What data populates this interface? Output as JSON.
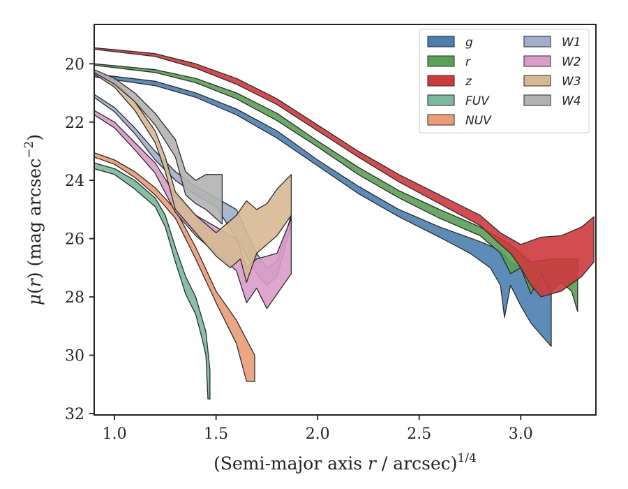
{
  "chart_data": {
    "type": "area",
    "title": "",
    "xlabel_parts": {
      "prefix": "(Semi-major axis ",
      "var": "r",
      "mid": " / arcsec)",
      "sup": "1/4"
    },
    "ylabel_parts": {
      "mu": "μ",
      "open": "(",
      "var": "r",
      "close": ") (mag arcsec",
      "sup": "−2",
      "end": ")"
    },
    "xlim": [
      0.9,
      3.37
    ],
    "ylim": [
      32.05,
      18.65
    ],
    "y_inverted": true,
    "xticks": [
      1.0,
      1.5,
      2.0,
      2.5,
      3.0
    ],
    "xtick_labels": [
      "1.0",
      "1.5",
      "2.0",
      "2.5",
      "3.0"
    ],
    "yticks": [
      20,
      22,
      24,
      26,
      28,
      30,
      32
    ],
    "ytick_labels": [
      "20",
      "22",
      "24",
      "26",
      "28",
      "30",
      "32"
    ],
    "grid": false,
    "legend_placement": "top-right",
    "legend_columns": 2,
    "series": [
      {
        "name": "g",
        "color": "#4c7fb0",
        "upper": [
          [
            0.9,
            20.35
          ],
          [
            1.2,
            20.6
          ],
          [
            1.4,
            21.0
          ],
          [
            1.6,
            21.55
          ],
          [
            1.8,
            22.3
          ],
          [
            2.0,
            23.3
          ],
          [
            2.2,
            24.2
          ],
          [
            2.4,
            25.0
          ],
          [
            2.6,
            25.6
          ],
          [
            2.8,
            26.1
          ],
          [
            2.9,
            26.4
          ],
          [
            2.95,
            26.8
          ],
          [
            3.0,
            27.0
          ],
          [
            3.05,
            27.1
          ],
          [
            3.1,
            26.95
          ],
          [
            3.15,
            27.0
          ]
        ],
        "lower": [
          [
            0.9,
            20.45
          ],
          [
            1.2,
            20.75
          ],
          [
            1.4,
            21.15
          ],
          [
            1.6,
            21.75
          ],
          [
            1.8,
            22.55
          ],
          [
            2.0,
            23.5
          ],
          [
            2.2,
            24.45
          ],
          [
            2.4,
            25.25
          ],
          [
            2.6,
            25.95
          ],
          [
            2.75,
            26.5
          ],
          [
            2.85,
            27.0
          ],
          [
            2.9,
            27.6
          ],
          [
            2.92,
            28.7
          ],
          [
            2.95,
            27.6
          ],
          [
            3.0,
            28.3
          ],
          [
            3.05,
            28.9
          ],
          [
            3.1,
            29.3
          ],
          [
            3.15,
            29.7
          ]
        ]
      },
      {
        "name": "r",
        "color": "#5aa055",
        "upper": [
          [
            0.9,
            20.0
          ],
          [
            1.2,
            20.2
          ],
          [
            1.4,
            20.5
          ],
          [
            1.6,
            21.0
          ],
          [
            1.8,
            21.7
          ],
          [
            2.0,
            22.65
          ],
          [
            2.2,
            23.55
          ],
          [
            2.4,
            24.35
          ],
          [
            2.6,
            25.0
          ],
          [
            2.8,
            25.6
          ],
          [
            2.95,
            26.2
          ],
          [
            3.05,
            26.8
          ],
          [
            3.15,
            26.7
          ],
          [
            3.25,
            26.7
          ],
          [
            3.28,
            26.7
          ]
        ],
        "lower": [
          [
            0.9,
            20.05
          ],
          [
            1.2,
            20.3
          ],
          [
            1.4,
            20.65
          ],
          [
            1.6,
            21.2
          ],
          [
            1.8,
            21.95
          ],
          [
            2.0,
            22.85
          ],
          [
            2.2,
            23.8
          ],
          [
            2.4,
            24.6
          ],
          [
            2.6,
            25.3
          ],
          [
            2.8,
            25.9
          ],
          [
            2.9,
            26.5
          ],
          [
            2.95,
            27.2
          ],
          [
            3.0,
            27.0
          ],
          [
            3.05,
            27.9
          ],
          [
            3.1,
            27.2
          ],
          [
            3.15,
            27.8
          ],
          [
            3.2,
            27.5
          ],
          [
            3.25,
            27.8
          ],
          [
            3.28,
            28.5
          ]
        ]
      },
      {
        "name": "z",
        "color": "#cc3a3e",
        "upper": [
          [
            0.9,
            19.45
          ],
          [
            1.2,
            19.65
          ],
          [
            1.4,
            20.0
          ],
          [
            1.6,
            20.5
          ],
          [
            1.8,
            21.2
          ],
          [
            2.0,
            22.1
          ],
          [
            2.2,
            23.0
          ],
          [
            2.4,
            23.8
          ],
          [
            2.6,
            24.5
          ],
          [
            2.8,
            25.2
          ],
          [
            2.9,
            25.8
          ],
          [
            3.0,
            26.2
          ],
          [
            3.1,
            25.95
          ],
          [
            3.2,
            25.9
          ],
          [
            3.3,
            25.6
          ],
          [
            3.36,
            25.25
          ]
        ],
        "lower": [
          [
            0.9,
            19.5
          ],
          [
            1.2,
            19.75
          ],
          [
            1.4,
            20.15
          ],
          [
            1.6,
            20.7
          ],
          [
            1.8,
            21.4
          ],
          [
            2.0,
            22.3
          ],
          [
            2.2,
            23.2
          ],
          [
            2.4,
            24.05
          ],
          [
            2.6,
            24.8
          ],
          [
            2.8,
            25.55
          ],
          [
            2.9,
            26.2
          ],
          [
            2.95,
            26.5
          ],
          [
            3.0,
            27.0
          ],
          [
            3.05,
            27.6
          ],
          [
            3.1,
            28.0
          ],
          [
            3.2,
            27.8
          ],
          [
            3.3,
            27.3
          ],
          [
            3.36,
            26.8
          ]
        ]
      },
      {
        "name": "FUV",
        "color": "#7bb89c",
        "upper": [
          [
            0.9,
            23.4
          ],
          [
            1.0,
            23.6
          ],
          [
            1.1,
            24.0
          ],
          [
            1.2,
            24.6
          ],
          [
            1.25,
            25.2
          ],
          [
            1.3,
            26.3
          ],
          [
            1.35,
            27.3
          ],
          [
            1.4,
            28.0
          ],
          [
            1.45,
            29.2
          ],
          [
            1.47,
            30.5
          ],
          [
            1.47,
            31.5
          ]
        ],
        "lower": [
          [
            0.9,
            23.6
          ],
          [
            1.0,
            23.8
          ],
          [
            1.1,
            24.3
          ],
          [
            1.2,
            24.9
          ],
          [
            1.25,
            25.6
          ],
          [
            1.3,
            26.8
          ],
          [
            1.35,
            27.9
          ],
          [
            1.4,
            28.6
          ],
          [
            1.43,
            29.4
          ],
          [
            1.45,
            30.0
          ],
          [
            1.46,
            31.5
          ]
        ]
      },
      {
        "name": "NUV",
        "color": "#eb9c78",
        "upper": [
          [
            0.9,
            23.05
          ],
          [
            1.0,
            23.3
          ],
          [
            1.1,
            23.7
          ],
          [
            1.2,
            24.25
          ],
          [
            1.3,
            25.0
          ],
          [
            1.4,
            26.3
          ],
          [
            1.5,
            27.8
          ],
          [
            1.6,
            28.8
          ],
          [
            1.69,
            30.0
          ]
        ],
        "lower": [
          [
            0.9,
            23.2
          ],
          [
            1.0,
            23.45
          ],
          [
            1.1,
            23.9
          ],
          [
            1.2,
            24.5
          ],
          [
            1.3,
            25.3
          ],
          [
            1.4,
            26.7
          ],
          [
            1.5,
            28.2
          ],
          [
            1.6,
            29.6
          ],
          [
            1.65,
            30.9
          ],
          [
            1.69,
            30.9
          ]
        ]
      },
      {
        "name": "W1",
        "color": "#a2aecb",
        "upper": [
          [
            0.9,
            21.05
          ],
          [
            1.0,
            21.5
          ],
          [
            1.1,
            22.2
          ],
          [
            1.2,
            23.0
          ],
          [
            1.3,
            23.7
          ],
          [
            1.4,
            24.2
          ],
          [
            1.5,
            24.6
          ],
          [
            1.6,
            25.0
          ],
          [
            1.7,
            26.5
          ],
          [
            1.75,
            27.0
          ],
          [
            1.8,
            26.8
          ],
          [
            1.87,
            25.2
          ]
        ],
        "lower": [
          [
            0.9,
            21.15
          ],
          [
            1.0,
            21.65
          ],
          [
            1.1,
            22.4
          ],
          [
            1.2,
            23.3
          ],
          [
            1.3,
            24.0
          ],
          [
            1.4,
            24.5
          ],
          [
            1.5,
            24.9
          ],
          [
            1.6,
            26.0
          ],
          [
            1.7,
            27.2
          ],
          [
            1.75,
            27.6
          ],
          [
            1.8,
            27.3
          ],
          [
            1.87,
            25.5
          ]
        ]
      },
      {
        "name": "W2",
        "color": "#da9cc9",
        "upper": [
          [
            0.9,
            21.6
          ],
          [
            1.0,
            22.0
          ],
          [
            1.1,
            22.7
          ],
          [
            1.2,
            23.4
          ],
          [
            1.3,
            24.5
          ],
          [
            1.4,
            25.2
          ],
          [
            1.5,
            25.6
          ],
          [
            1.6,
            26.0
          ],
          [
            1.65,
            27.0
          ],
          [
            1.7,
            26.7
          ],
          [
            1.8,
            26.5
          ],
          [
            1.87,
            25.3
          ]
        ],
        "lower": [
          [
            0.9,
            21.75
          ],
          [
            1.0,
            22.2
          ],
          [
            1.1,
            22.95
          ],
          [
            1.2,
            23.75
          ],
          [
            1.3,
            25.1
          ],
          [
            1.4,
            25.9
          ],
          [
            1.5,
            26.5
          ],
          [
            1.6,
            27.1
          ],
          [
            1.65,
            28.2
          ],
          [
            1.7,
            27.7
          ],
          [
            1.75,
            28.4
          ],
          [
            1.8,
            27.9
          ],
          [
            1.87,
            27.2
          ]
        ]
      },
      {
        "name": "W3",
        "color": "#d6b994",
        "upper": [
          [
            0.9,
            20.25
          ],
          [
            1.0,
            20.6
          ],
          [
            1.1,
            21.3
          ],
          [
            1.2,
            22.3
          ],
          [
            1.25,
            23.2
          ],
          [
            1.3,
            24.4
          ],
          [
            1.4,
            25.2
          ],
          [
            1.5,
            25.8
          ],
          [
            1.6,
            25.2
          ],
          [
            1.65,
            24.7
          ],
          [
            1.7,
            25.0
          ],
          [
            1.75,
            24.8
          ],
          [
            1.8,
            24.3
          ],
          [
            1.87,
            23.8
          ]
        ],
        "lower": [
          [
            0.9,
            20.35
          ],
          [
            1.0,
            20.8
          ],
          [
            1.1,
            21.6
          ],
          [
            1.2,
            22.7
          ],
          [
            1.25,
            23.7
          ],
          [
            1.3,
            25.0
          ],
          [
            1.4,
            25.8
          ],
          [
            1.5,
            26.6
          ],
          [
            1.57,
            27.0
          ],
          [
            1.62,
            26.7
          ],
          [
            1.65,
            27.5
          ],
          [
            1.7,
            26.5
          ],
          [
            1.8,
            25.9
          ],
          [
            1.87,
            25.2
          ]
        ]
      },
      {
        "name": "W4",
        "color": "#b2b2b2",
        "upper": [
          [
            0.9,
            20.2
          ],
          [
            1.0,
            20.5
          ],
          [
            1.1,
            21.0
          ],
          [
            1.2,
            21.7
          ],
          [
            1.3,
            22.6
          ],
          [
            1.35,
            23.7
          ],
          [
            1.4,
            24.0
          ],
          [
            1.45,
            23.8
          ],
          [
            1.53,
            23.8
          ]
        ],
        "lower": [
          [
            0.9,
            20.3
          ],
          [
            1.0,
            20.7
          ],
          [
            1.1,
            21.3
          ],
          [
            1.2,
            22.1
          ],
          [
            1.3,
            23.2
          ],
          [
            1.35,
            24.5
          ],
          [
            1.4,
            24.8
          ],
          [
            1.45,
            25.0
          ],
          [
            1.53,
            25.5
          ]
        ]
      }
    ],
    "legend_order": [
      "g",
      "r",
      "z",
      "FUV",
      "NUV",
      "W1",
      "W2",
      "W3",
      "W4"
    ]
  }
}
